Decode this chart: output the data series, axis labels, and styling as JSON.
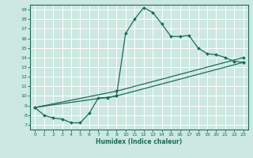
{
  "xlabel": "Humidex (Indice chaleur)",
  "bg_color": "#cce8e0",
  "line_color": "#1a6b5a",
  "grid_color": "#ffffff",
  "xlim": [
    -0.5,
    23.5
  ],
  "ylim": [
    6.5,
    19.5
  ],
  "xticks": [
    0,
    1,
    2,
    3,
    4,
    5,
    6,
    7,
    8,
    9,
    10,
    11,
    12,
    13,
    14,
    15,
    16,
    17,
    18,
    19,
    20,
    21,
    22,
    23
  ],
  "yticks": [
    7,
    8,
    9,
    10,
    11,
    12,
    13,
    14,
    15,
    16,
    17,
    18,
    19
  ],
  "line1_x": [
    0,
    1,
    2,
    3,
    4,
    5,
    6,
    7,
    8,
    9,
    10,
    11,
    12,
    13,
    14,
    15,
    16,
    17,
    18,
    19,
    20,
    21,
    22,
    23
  ],
  "line1_y": [
    8.8,
    8.0,
    7.7,
    7.6,
    7.2,
    7.2,
    8.2,
    9.8,
    9.8,
    10.0,
    16.5,
    18.0,
    19.2,
    18.7,
    17.5,
    16.2,
    16.2,
    16.3,
    15.0,
    14.4,
    14.3,
    14.0,
    13.6,
    13.5
  ],
  "line2_x": [
    0,
    9,
    23
  ],
  "line2_y": [
    8.8,
    10.0,
    13.5
  ],
  "line3_x": [
    0,
    9,
    23
  ],
  "line3_y": [
    8.8,
    10.5,
    14.0
  ]
}
